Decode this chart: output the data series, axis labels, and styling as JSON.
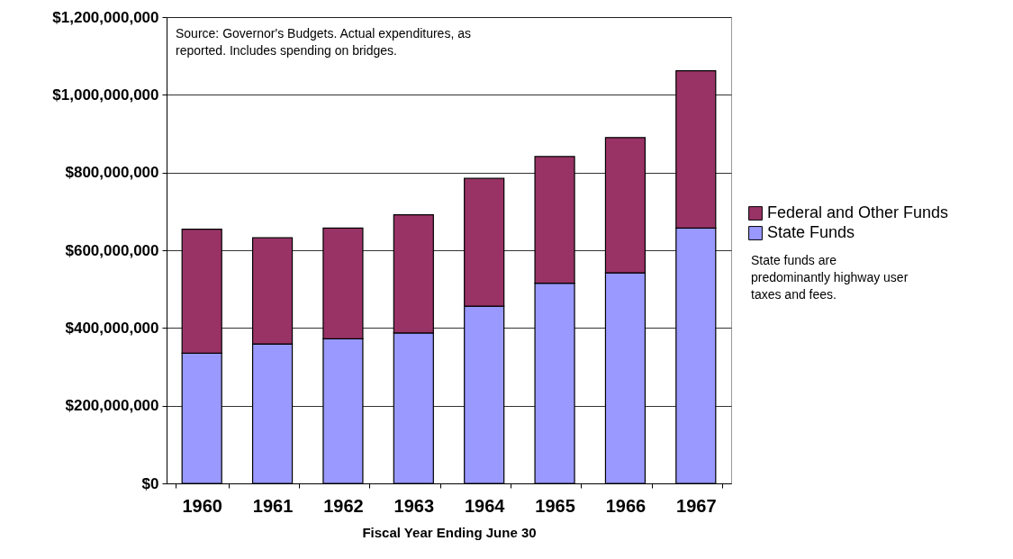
{
  "chart_data": {
    "type": "bar",
    "stacked": true,
    "categories": [
      "1960",
      "1961",
      "1962",
      "1963",
      "1964",
      "1965",
      "1966",
      "1967"
    ],
    "series": [
      {
        "name": "State Funds",
        "color": "#9999ff",
        "values": [
          335000000,
          359000000,
          372000000,
          387000000,
          456000000,
          515000000,
          542000000,
          657000000
        ]
      },
      {
        "name": "Federal and Other Funds",
        "color": "#993366",
        "values": [
          319000000,
          273000000,
          285000000,
          304000000,
          329000000,
          326000000,
          348000000,
          405000000
        ]
      }
    ],
    "xlabel": "Fiscal Year Ending June 30",
    "ylim": [
      0,
      1200000000
    ],
    "yticks": [
      {
        "value": 0,
        "label": "$0"
      },
      {
        "value": 200000000,
        "label": "$200,000,000"
      },
      {
        "value": 400000000,
        "label": "$400,000,000"
      },
      {
        "value": 600000000,
        "label": "$600,000,000"
      },
      {
        "value": 800000000,
        "label": "$800,000,000"
      },
      {
        "value": 1000000000,
        "label": "$1,000,000,000"
      },
      {
        "value": 1200000000,
        "label": "$1,200,000,000"
      }
    ],
    "grid": "y",
    "legend": "right",
    "annotations": [
      "Source: Governor's Budgets. Actual expenditures, as reported. Includes spending on bridges.",
      "State funds are predominantly highway user taxes and fees."
    ]
  }
}
